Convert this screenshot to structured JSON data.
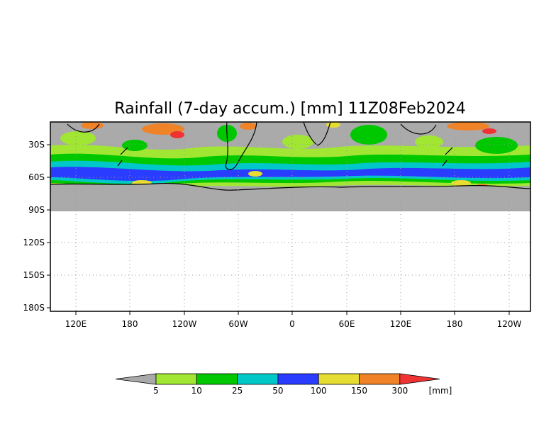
{
  "title": "Rainfall (7-day accum.) [mm] 11Z08Feb2024",
  "map": {
    "lat_axis_labels": [
      "30S",
      "60S",
      "90S",
      "120S",
      "150S",
      "180S"
    ],
    "lon_axis_labels": [
      "120E",
      "180",
      "120W",
      "60W",
      "0",
      "60E",
      "120E",
      "180",
      "120W"
    ],
    "grid": "dotted",
    "no_data_color": "#aaaaaa"
  },
  "colorbar": {
    "tick_labels": [
      "5",
      "10",
      "25",
      "50",
      "100",
      "150",
      "300"
    ],
    "unit": "[mm]",
    "colors": [
      "#a9a9a9",
      "#a0e632",
      "#00c800",
      "#00c8c8",
      "#2a3cff",
      "#e6dc32",
      "#f08228",
      "#f03232"
    ]
  }
}
